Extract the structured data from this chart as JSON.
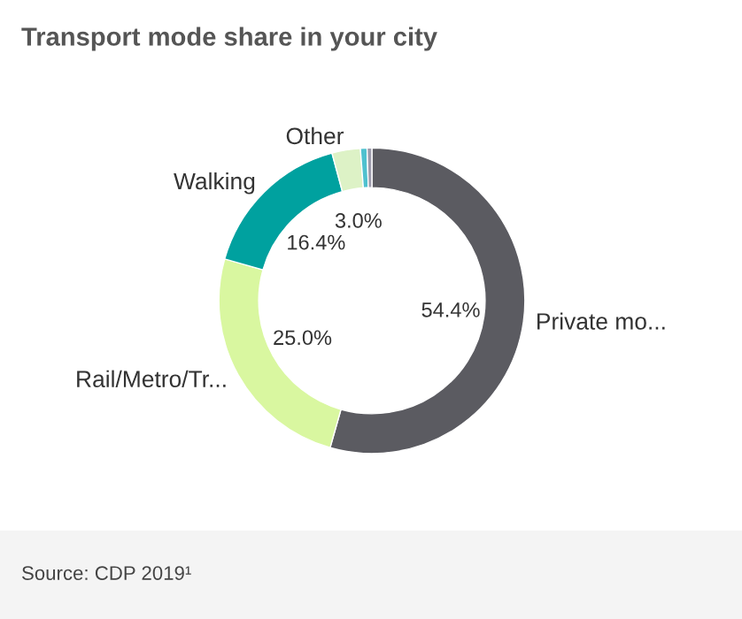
{
  "chart_data": {
    "type": "donut",
    "title": "Transport mode share in your city",
    "categories": [
      "Private mo...",
      "Rail/Metro/Tr...",
      "Walking",
      "Other",
      null,
      null
    ],
    "values": [
      54.4,
      25.0,
      16.4,
      3.0,
      0.7,
      0.5
    ],
    "colors": [
      "#5b5b61",
      "#d9f7a0",
      "#00a19f",
      "#ddf2c6",
      "#4fc1cf",
      "#9c9aab"
    ],
    "value_labels": [
      "54.4%",
      "25.0%",
      "16.4%",
      "3.0%",
      null,
      null
    ],
    "annotations": [
      "Source: CDP 2019¹"
    ]
  }
}
